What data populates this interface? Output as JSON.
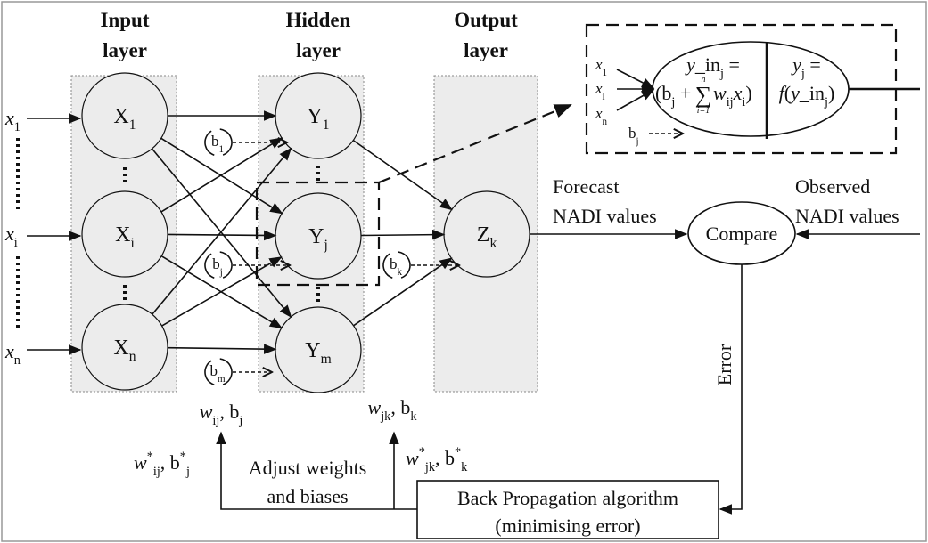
{
  "layers": [
    {
      "line1": "Input",
      "line2": "layer"
    },
    {
      "line1": "Hidden",
      "line2": "layer"
    },
    {
      "line1": "Output",
      "line2": "layer"
    }
  ],
  "inputs": [
    [
      {
        "text": "x",
        "sub": "1",
        "italic": true
      }
    ],
    [
      {
        "text": "x",
        "sub": "i",
        "italic": true
      }
    ],
    [
      {
        "text": "x",
        "sub": "n",
        "italic": true
      }
    ]
  ],
  "input_nodes": [
    [
      {
        "text": "X",
        "sub": "1"
      }
    ],
    [
      {
        "text": "X",
        "sub": "i"
      }
    ],
    [
      {
        "text": "X",
        "sub": "n"
      }
    ]
  ],
  "hidden_nodes": [
    [
      {
        "text": "Y",
        "sub": "1"
      }
    ],
    [
      {
        "text": "Y",
        "sub": "j"
      }
    ],
    [
      {
        "text": "Y",
        "sub": "m"
      }
    ]
  ],
  "output_node": [
    {
      "text": "Z",
      "sub": "k"
    }
  ],
  "biases": [
    [
      {
        "text": "b",
        "sub": "1"
      }
    ],
    [
      {
        "text": "b",
        "sub": "j"
      }
    ],
    [
      {
        "text": "b",
        "sub": "m"
      }
    ],
    [
      {
        "text": "b",
        "sub": "k"
      }
    ]
  ],
  "neuron_detail": {
    "inputs": [
      [
        {
          "text": "x",
          "sub": "1",
          "italic": true
        }
      ],
      [
        {
          "text": "x",
          "sub": "i",
          "italic": true
        }
      ],
      [
        {
          "text": "x",
          "sub": "n",
          "italic": true
        }
      ]
    ],
    "bias": [
      {
        "text": "b",
        "sub": "j"
      }
    ],
    "sum_line1": [
      {
        "text": "y",
        "italic": true
      },
      {
        "text": "_in",
        "sub": "j"
      },
      {
        "text": " ="
      }
    ],
    "sum_line2_left": [
      {
        "text": "(b",
        "sub": "j"
      },
      {
        "text": " +"
      }
    ],
    "sigma": {
      "symbol": "∑",
      "upper": "n",
      "lower": "i=1"
    },
    "sum_line2_right": [
      {
        "text": "w",
        "sub": "ij",
        "italic": true
      },
      {
        "text": "x",
        "sub": "i",
        "italic": true
      },
      {
        "text": ")"
      }
    ],
    "act_line1": [
      {
        "text": "y",
        "sub": "j",
        "italic": true
      },
      {
        "text": " ="
      }
    ],
    "act_line2": [
      {
        "text": "f",
        "italic": true
      },
      {
        "text": "("
      },
      {
        "text": "y",
        "italic": true
      },
      {
        "text": "_in",
        "sub": "j"
      },
      {
        "text": ")"
      }
    ]
  },
  "forecast": {
    "line1": "Forecast",
    "line2": "NADI values"
  },
  "observed": {
    "line1": "Observed",
    "line2": "NADI values"
  },
  "compare": "Compare",
  "error": "Error",
  "backprop": {
    "line1": "Back Propagation algorithm",
    "line2": "(minimising error)"
  },
  "adjust": {
    "line1": "Adjust weights",
    "line2": "and biases"
  },
  "weights_ij": [
    {
      "text": "w",
      "sub": "ij",
      "italic": true
    },
    {
      "text": ", b",
      "sub": "j"
    }
  ],
  "weights_jk": [
    {
      "text": "w",
      "sub": "jk",
      "italic": true
    },
    {
      "text": ", b",
      "sub": "k"
    }
  ],
  "updated_ij": [
    {
      "text": "w",
      "sup": "*",
      "sub": "ij",
      "italic": true
    },
    {
      "text": ", b",
      "sup": "*",
      "sub": "j"
    }
  ],
  "updated_jk": [
    {
      "text": "w",
      "sup": "*",
      "sub": "jk",
      "italic": true
    },
    {
      "text": ", b",
      "sup": "*",
      "sub": "k"
    }
  ]
}
